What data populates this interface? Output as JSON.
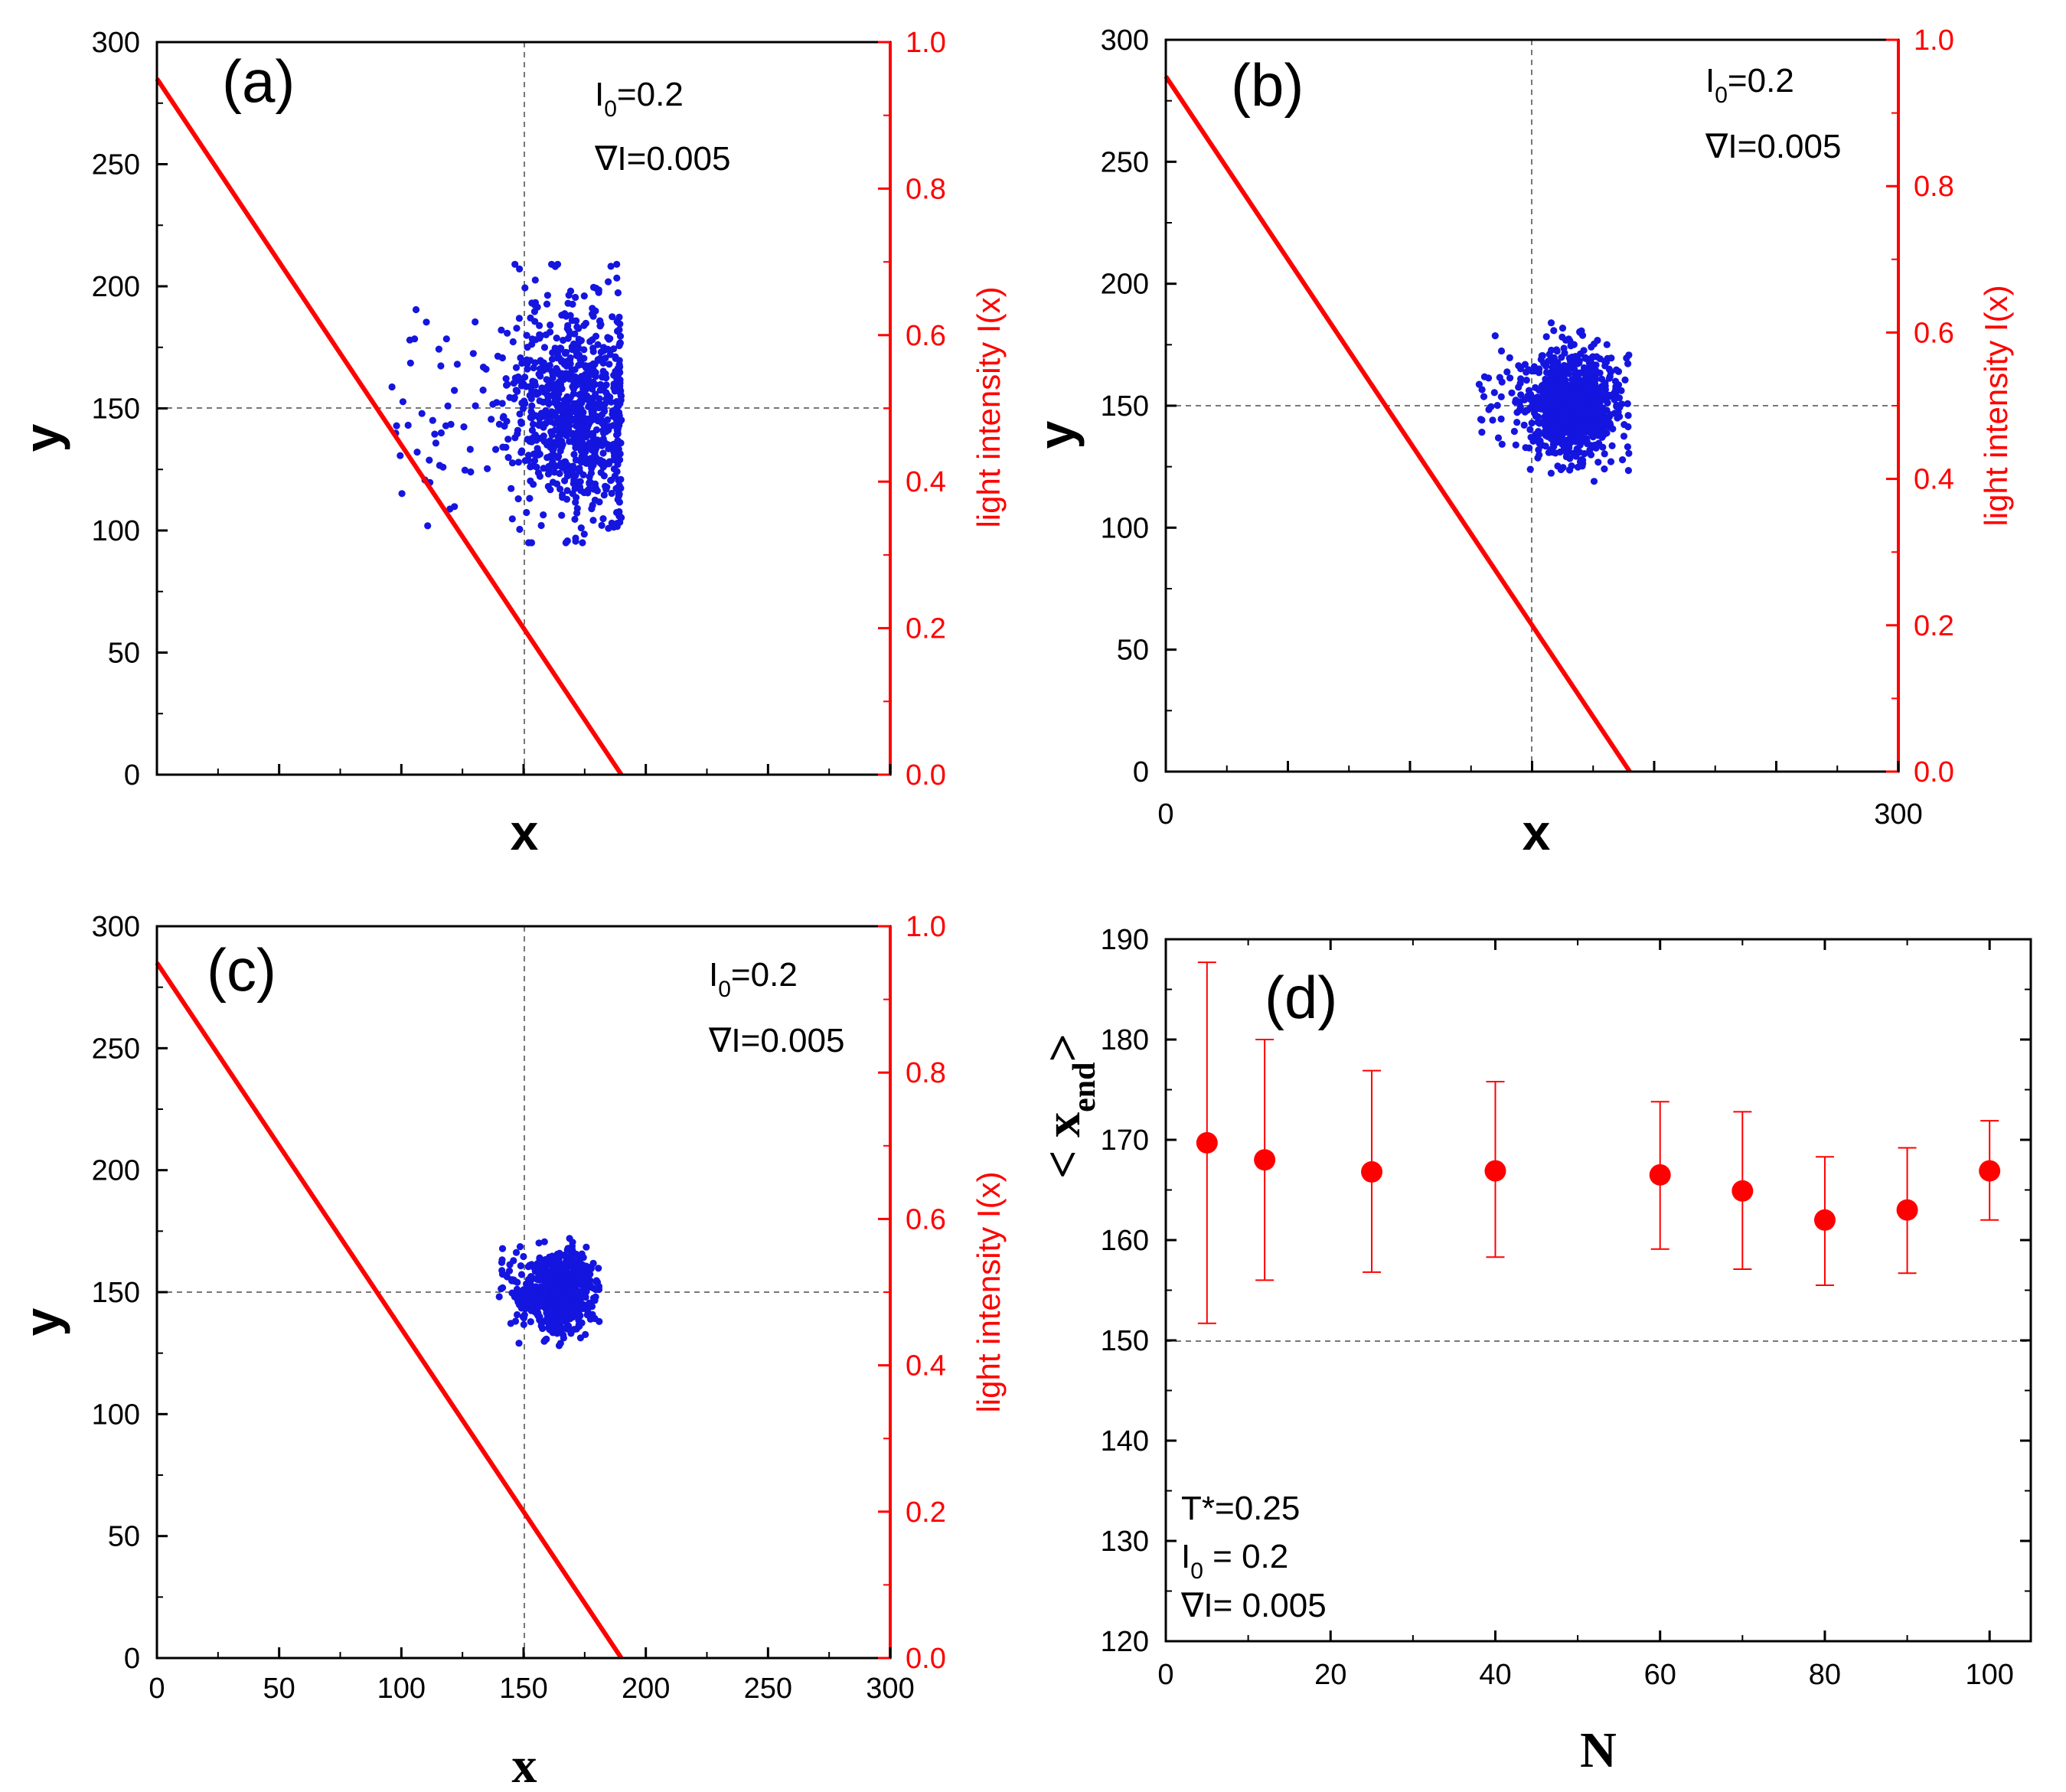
{
  "colors": {
    "scatter": "#1515e0",
    "line": "#ff0000",
    "axis": "#000000",
    "guide": "#777777"
  },
  "chart_data": [
    {
      "type": "scatter",
      "panel_label": "(a)",
      "xlabel": "x",
      "ylabel": "y",
      "y2label": "light intensity I(x)",
      "x_tick_labels": [],
      "yticks": [
        0,
        50,
        100,
        150,
        200,
        250,
        300
      ],
      "y2ticks": [
        "0.0",
        "0.2",
        "0.4",
        "0.6",
        "0.8",
        "1.0"
      ],
      "xlim": [
        0,
        300
      ],
      "ylim": [
        0,
        300
      ],
      "y2lim": [
        0,
        1
      ],
      "intensity_line": {
        "x": [
          0,
          190
        ],
        "y": [
          0.95,
          0.0
        ]
      },
      "guides": {
        "x": 150,
        "y": 150
      },
      "annotation": {
        "i0_base": "I",
        "i0_sub": "0",
        "i0_value": "=0.2",
        "grad": "∇I=0.005"
      },
      "cloud": {
        "n": 900,
        "x_mean": 172,
        "x_sd": 14,
        "y_mean": 150,
        "y_sd": 22,
        "x_left_tail": 95,
        "x_right_edge": 190,
        "y_min": 95,
        "y_max": 209
      }
    },
    {
      "type": "scatter",
      "panel_label": "(b)",
      "xlabel": "x",
      "ylabel": "y",
      "y2label": "light intensity I(x)",
      "x_tick_labels": [
        "0",
        "300"
      ],
      "yticks": [
        0,
        50,
        100,
        150,
        200,
        250,
        300
      ],
      "y2ticks": [
        "0.0",
        "0.2",
        "0.4",
        "0.6",
        "0.8",
        "1.0"
      ],
      "xlim": [
        0,
        300
      ],
      "ylim": [
        0,
        300
      ],
      "y2lim": [
        0,
        1
      ],
      "intensity_line": {
        "x": [
          0,
          190
        ],
        "y": [
          0.95,
          0.0
        ]
      },
      "guides": {
        "x": 150,
        "y": 150
      },
      "annotation": {
        "i0_base": "I",
        "i0_sub": "0",
        "i0_value": "=0.2",
        "grad": "∇I=0.005"
      },
      "cloud": {
        "n": 900,
        "x_mean": 167,
        "x_sd": 9,
        "y_mean": 150,
        "y_sd": 11,
        "x_left_tail": 128,
        "x_right_edge": 190,
        "y_min": 114,
        "y_max": 184
      }
    },
    {
      "type": "scatter",
      "panel_label": "(c)",
      "xlabel": "x",
      "ylabel": "y",
      "y2label": "light intensity I(x)",
      "x_tick_labels": [
        "0",
        "50",
        "100",
        "150",
        "200",
        "250",
        "300"
      ],
      "yticks": [
        0,
        50,
        100,
        150,
        200,
        250,
        300
      ],
      "y2ticks": [
        "0.0",
        "0.2",
        "0.4",
        "0.6",
        "0.8",
        "1.0"
      ],
      "xlim": [
        0,
        300
      ],
      "ylim": [
        0,
        300
      ],
      "y2lim": [
        0,
        1
      ],
      "intensity_line": {
        "x": [
          0,
          190
        ],
        "y": [
          0.95,
          0.0
        ]
      },
      "guides": {
        "x": 150,
        "y": 150
      },
      "annotation": {
        "i0_base": "I",
        "i0_sub": "0",
        "i0_value": "=0.2",
        "grad": "∇I=0.005"
      },
      "cloud": {
        "n": 700,
        "x_mean": 165,
        "x_sd": 7,
        "y_mean": 150,
        "y_sd": 8,
        "x_left_tail": 140,
        "x_right_edge": 181,
        "y_min": 124,
        "y_max": 172
      }
    },
    {
      "type": "scatter",
      "panel_label": "(d)",
      "xlabel": "N",
      "ylabel_base": "< x",
      "ylabel_sub": "end",
      "ylabel_close": ">",
      "x": [
        5,
        12,
        25,
        40,
        60,
        70,
        80,
        90,
        100
      ],
      "y": [
        169.7,
        168,
        166.8,
        166.9,
        166.5,
        164.9,
        162,
        163,
        166.9
      ],
      "err_low": [
        151.7,
        156,
        156.8,
        158.3,
        159.1,
        157.1,
        155.5,
        156.7,
        162
      ],
      "err_high": [
        187.7,
        180,
        176.9,
        175.8,
        173.8,
        172.8,
        168.3,
        169.2,
        171.9
      ],
      "xlim": [
        0,
        105
      ],
      "ylim": [
        120,
        190
      ],
      "xticks": [
        0,
        20,
        40,
        60,
        80,
        100
      ],
      "yticks": [
        120,
        130,
        140,
        150,
        160,
        170,
        180,
        190
      ],
      "guide_y": 150,
      "annotation": {
        "t": "T*=0.25",
        "i0_base": "I",
        "i0_sub": "0",
        "i0_value": " = 0.2",
        "grad": "∇I= 0.005"
      }
    }
  ]
}
